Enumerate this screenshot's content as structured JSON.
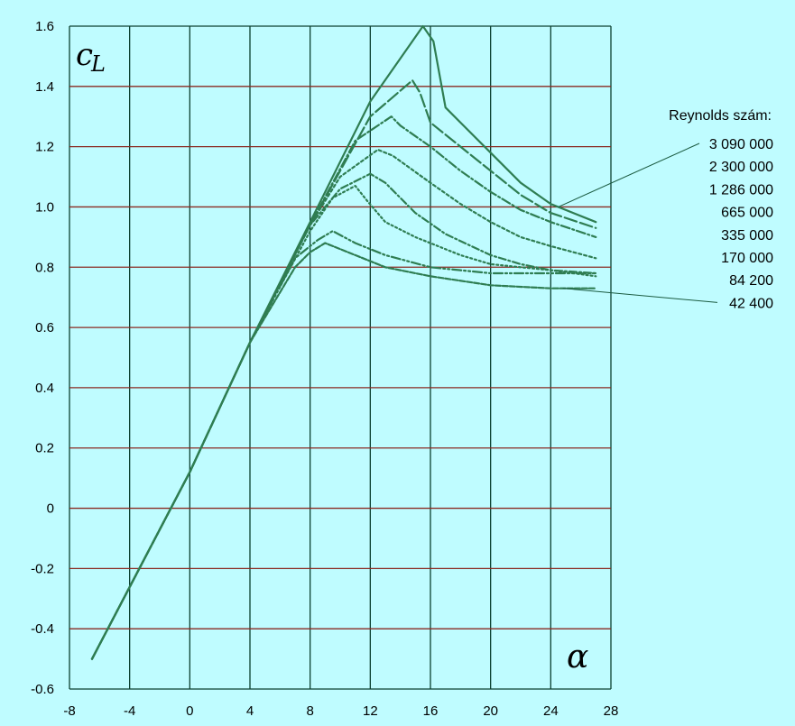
{
  "chart_data": {
    "type": "line",
    "title": "",
    "xlabel": "α",
    "ylabel": "c",
    "ylabel_sub": "L",
    "xlim": [
      -8,
      28
    ],
    "ylim": [
      -0.6,
      1.6
    ],
    "x_ticks": [
      "-8",
      "-4",
      "0",
      "4",
      "8",
      "12",
      "16",
      "20",
      "24",
      "28"
    ],
    "y_ticks": [
      "1.6",
      "1.4",
      "1.2",
      "1.0",
      "0.8",
      "0.6",
      "0.4",
      "0.2",
      "0",
      "-0.2",
      "-0.4",
      "-0.6"
    ],
    "grid": true,
    "legend_title": "Reynolds szám:",
    "legend_position": "right",
    "series": [
      {
        "name": "3 090 000",
        "x": [
          -6.5,
          0,
          4,
          8,
          12,
          15.5,
          16.2,
          17,
          18,
          20,
          22,
          24,
          27
        ],
        "y": [
          -0.5,
          0.12,
          0.55,
          0.95,
          1.35,
          1.6,
          1.55,
          1.33,
          1.28,
          1.18,
          1.08,
          1.01,
          0.95
        ]
      },
      {
        "name": "2 300 000",
        "x": [
          -6.5,
          0,
          4,
          8,
          12,
          14.8,
          15.3,
          16,
          18,
          20,
          22,
          24,
          27
        ],
        "y": [
          -0.5,
          0.12,
          0.55,
          0.94,
          1.3,
          1.42,
          1.38,
          1.28,
          1.2,
          1.12,
          1.04,
          0.98,
          0.93
        ]
      },
      {
        "name": "1 286 000",
        "x": [
          -6.5,
          0,
          4,
          8,
          11,
          13.4,
          14,
          16,
          18,
          20,
          22,
          24,
          27
        ],
        "y": [
          -0.5,
          0.12,
          0.55,
          0.94,
          1.22,
          1.3,
          1.27,
          1.2,
          1.12,
          1.05,
          0.99,
          0.95,
          0.9
        ]
      },
      {
        "name": "665 000",
        "x": [
          -6.5,
          0,
          4,
          8,
          10,
          12.5,
          13.5,
          16,
          18,
          20,
          22,
          24,
          27
        ],
        "y": [
          -0.5,
          0.12,
          0.55,
          0.94,
          1.1,
          1.19,
          1.17,
          1.08,
          1.01,
          0.95,
          0.9,
          0.87,
          0.83
        ]
      },
      {
        "name": "335 000",
        "x": [
          -6.5,
          0,
          4,
          8,
          10,
          12,
          13,
          15,
          17,
          20,
          22,
          24,
          27
        ],
        "y": [
          -0.5,
          0.12,
          0.55,
          0.94,
          1.06,
          1.11,
          1.08,
          0.98,
          0.91,
          0.84,
          0.81,
          0.79,
          0.78
        ]
      },
      {
        "name": "170 000",
        "x": [
          -6.5,
          0,
          4,
          8,
          9.5,
          11,
          11.8,
          13,
          15,
          18,
          20,
          22,
          24,
          27
        ],
        "y": [
          -0.5,
          0.12,
          0.55,
          0.92,
          1.03,
          1.07,
          1.02,
          0.95,
          0.9,
          0.84,
          0.81,
          0.8,
          0.79,
          0.77
        ]
      },
      {
        "name": "84 200",
        "x": [
          -6.5,
          0,
          4,
          7,
          8.5,
          9.5,
          11,
          13,
          16,
          20,
          24,
          27
        ],
        "y": [
          -0.5,
          0.12,
          0.55,
          0.83,
          0.89,
          0.92,
          0.88,
          0.84,
          0.8,
          0.78,
          0.78,
          0.78
        ]
      },
      {
        "name": "42 400",
        "x": [
          -6.5,
          0,
          4,
          7,
          8,
          9,
          11,
          13,
          16,
          20,
          24,
          27
        ],
        "y": [
          -0.5,
          0.12,
          0.55,
          0.8,
          0.85,
          0.88,
          0.84,
          0.8,
          0.77,
          0.74,
          0.73,
          0.73
        ]
      }
    ]
  }
}
